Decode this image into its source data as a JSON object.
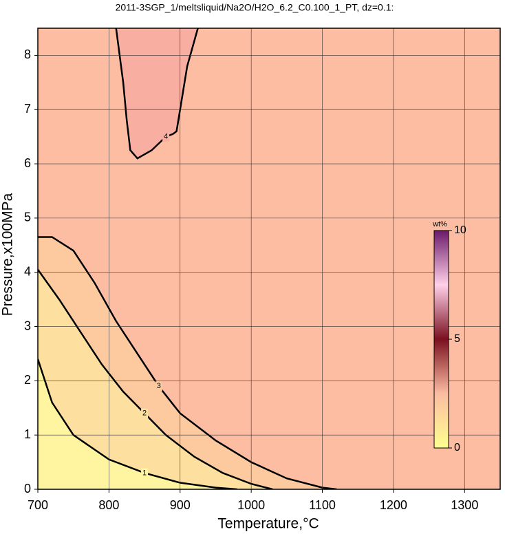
{
  "chart_data": {
    "type": "contour",
    "title": "2011-3SGP_1/meltsliquid/Na2O/H2O_6.2_C0.100_1_PT, dz=0.1:",
    "xlabel": "Temperature,°C",
    "ylabel": "Pressure,x100MPa",
    "xlim": [
      700,
      1350
    ],
    "ylim": [
      0,
      8.5
    ],
    "xticks": [
      700,
      800,
      900,
      1000,
      1100,
      1200,
      1300
    ],
    "yticks": [
      0,
      1,
      2,
      3,
      4,
      5,
      6,
      7,
      8
    ],
    "grid": true,
    "background": "#fcbda2",
    "contours": [
      {
        "level": 3,
        "fill": "#fdcaa0",
        "x": [
          700,
          720,
          750,
          780,
          810,
          840,
          870,
          900,
          950,
          1000,
          1050,
          1100,
          1120
        ],
        "y": [
          4.65,
          4.65,
          4.4,
          3.8,
          3.1,
          2.5,
          1.9,
          1.4,
          0.9,
          0.5,
          0.2,
          0.03,
          0
        ]
      },
      {
        "level": 2,
        "fill": "#fde0a0",
        "x": [
          700,
          730,
          760,
          790,
          820,
          850,
          880,
          920,
          960,
          1000,
          1030
        ],
        "y": [
          4.05,
          3.5,
          2.9,
          2.3,
          1.8,
          1.4,
          1.0,
          0.6,
          0.3,
          0.1,
          0
        ]
      },
      {
        "level": 1,
        "fill": "#fff4a0",
        "x": [
          700,
          720,
          750,
          800,
          850,
          900,
          950,
          980
        ],
        "y": [
          2.4,
          1.6,
          1.0,
          0.55,
          0.3,
          0.12,
          0.03,
          0
        ]
      },
      {
        "level": 4,
        "fill": "#f9aea2",
        "x": [
          810,
          820,
          825,
          830,
          840,
          860,
          880,
          890,
          895,
          900,
          910,
          925
        ],
        "y": [
          8.5,
          7.5,
          6.8,
          6.25,
          6.1,
          6.25,
          6.5,
          6.55,
          6.6,
          7.0,
          7.8,
          8.5
        ]
      }
    ],
    "colorbar": {
      "label": "wt%",
      "clim": [
        0,
        10
      ],
      "ticks": [
        0,
        5,
        10
      ],
      "colors": [
        "#ffff90",
        "#fcbda2",
        "#7a1020",
        "#ffd0e8",
        "#6a1a6a"
      ]
    }
  }
}
